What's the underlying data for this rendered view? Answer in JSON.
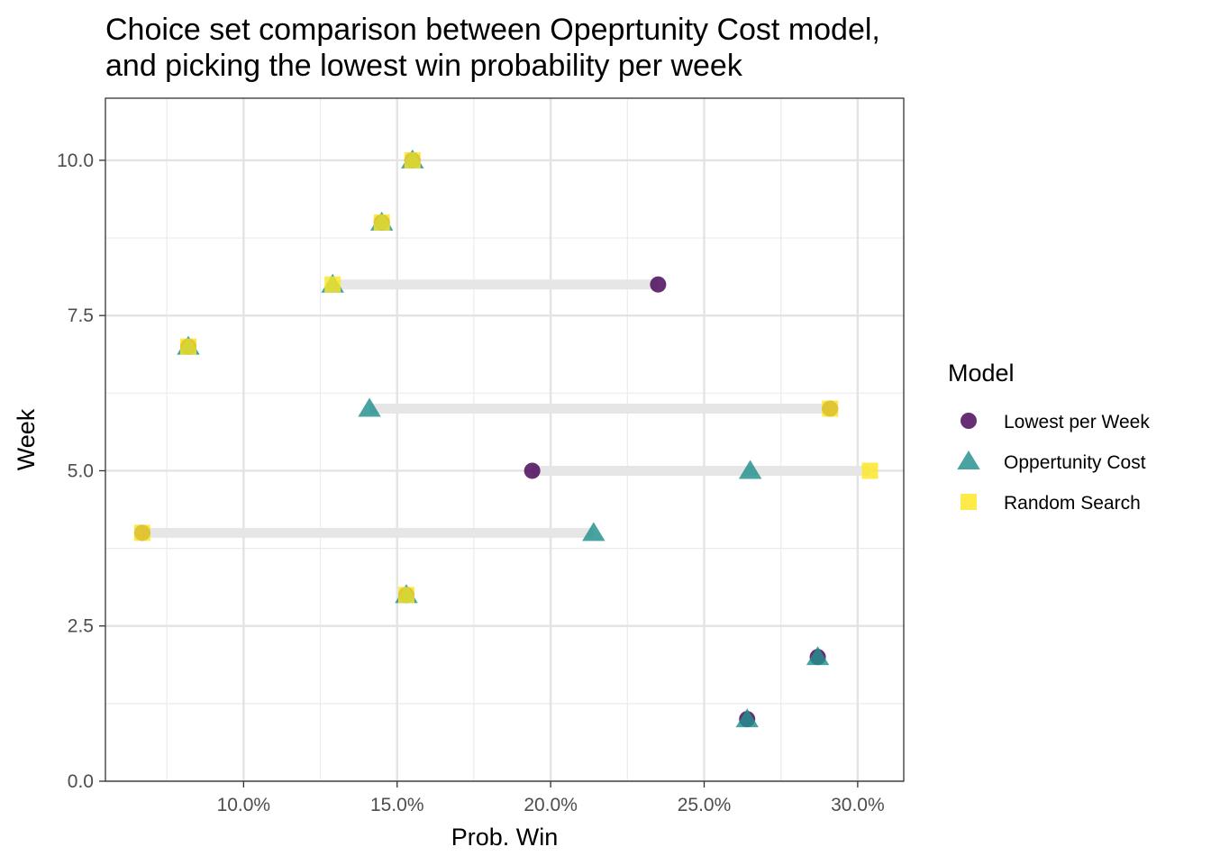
{
  "chart_data": {
    "type": "scatter",
    "title_lines": [
      "Choice set comparison between Opeprtunity Cost model,",
      "and picking the lowest win probability per week"
    ],
    "xlabel": "Prob. Win",
    "ylabel": "Week",
    "xlim": [
      0.055,
      0.315
    ],
    "ylim": [
      0,
      11
    ],
    "x_ticks": [
      {
        "value": 0.1,
        "label": "10.0%"
      },
      {
        "value": 0.15,
        "label": "15.0%"
      },
      {
        "value": 0.2,
        "label": "20.0%"
      },
      {
        "value": 0.25,
        "label": "25.0%"
      },
      {
        "value": 0.3,
        "label": "30.0%"
      }
    ],
    "y_ticks": [
      {
        "value": 0,
        "label": "0.0"
      },
      {
        "value": 2.5,
        "label": "2.5"
      },
      {
        "value": 5,
        "label": "5.0"
      },
      {
        "value": 7.5,
        "label": "7.5"
      },
      {
        "value": 10,
        "label": "10.0"
      }
    ],
    "grid": true,
    "legend": {
      "title": "Model",
      "position": "right"
    },
    "series": [
      {
        "name": "Lowest per Week",
        "shape": "circle",
        "color": "#440154",
        "points": [
          {
            "week": 1,
            "x": 0.264
          },
          {
            "week": 2,
            "x": 0.287
          },
          {
            "week": 3,
            "x": 0.153
          },
          {
            "week": 4,
            "x": 0.067
          },
          {
            "week": 5,
            "x": 0.194
          },
          {
            "week": 6,
            "x": 0.291
          },
          {
            "week": 7,
            "x": 0.082
          },
          {
            "week": 8,
            "x": 0.235
          },
          {
            "week": 9,
            "x": 0.145
          },
          {
            "week": 10,
            "x": 0.155
          }
        ]
      },
      {
        "name": "Oppertunity Cost",
        "shape": "triangle",
        "color": "#21908C",
        "points": [
          {
            "week": 1,
            "x": 0.264
          },
          {
            "week": 2,
            "x": 0.287
          },
          {
            "week": 3,
            "x": 0.153
          },
          {
            "week": 4,
            "x": 0.214
          },
          {
            "week": 5,
            "x": 0.265
          },
          {
            "week": 6,
            "x": 0.141
          },
          {
            "week": 7,
            "x": 0.082
          },
          {
            "week": 8,
            "x": 0.129
          },
          {
            "week": 9,
            "x": 0.145
          },
          {
            "week": 10,
            "x": 0.155
          }
        ]
      },
      {
        "name": "Random Search",
        "shape": "square",
        "color": "#FDE725",
        "points": [
          {
            "week": 3,
            "x": 0.153
          },
          {
            "week": 4,
            "x": 0.067
          },
          {
            "week": 5,
            "x": 0.304
          },
          {
            "week": 6,
            "x": 0.291
          },
          {
            "week": 7,
            "x": 0.082
          },
          {
            "week": 8,
            "x": 0.129
          },
          {
            "week": 9,
            "x": 0.145
          },
          {
            "week": 10,
            "x": 0.155
          }
        ]
      }
    ],
    "ranges": [
      {
        "week": 4,
        "x_min": 0.067,
        "x_max": 0.214
      },
      {
        "week": 5,
        "x_min": 0.194,
        "x_max": 0.304
      },
      {
        "week": 6,
        "x_min": 0.141,
        "x_max": 0.291
      },
      {
        "week": 8,
        "x_min": 0.129,
        "x_max": 0.235
      }
    ],
    "range_color": "#e6e6e6"
  }
}
